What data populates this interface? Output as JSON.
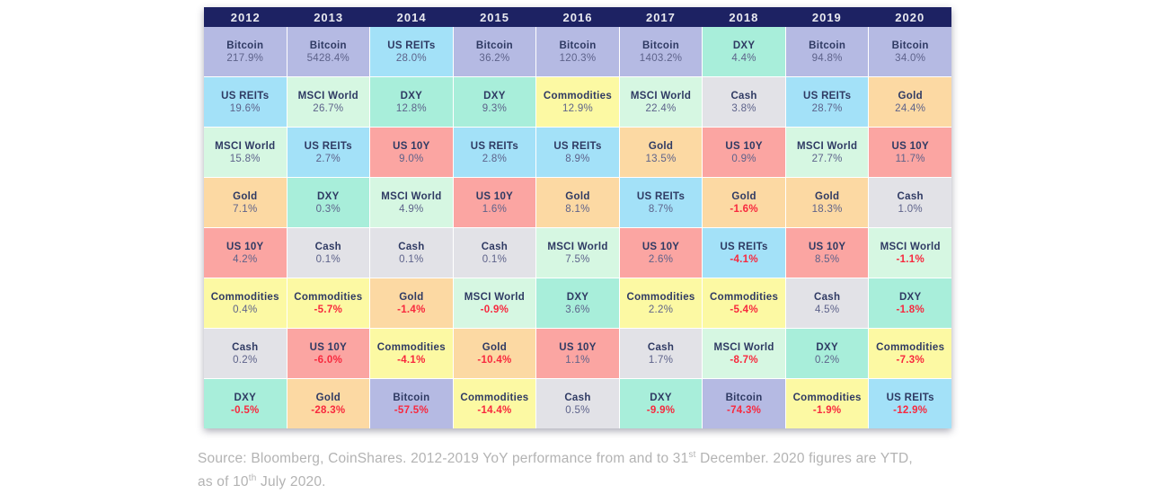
{
  "chart_data": {
    "type": "table",
    "title": "Yearly asset class performance ranking (periodic table of returns)",
    "columns": [
      "2012",
      "2013",
      "2014",
      "2015",
      "2016",
      "2017",
      "2018",
      "2019",
      "2020"
    ],
    "rows": [
      [
        {
          "asset": "Bitcoin",
          "value": "217.9%"
        },
        {
          "asset": "Bitcoin",
          "value": "5428.4%"
        },
        {
          "asset": "US REITs",
          "value": "28.0%"
        },
        {
          "asset": "Bitcoin",
          "value": "36.2%"
        },
        {
          "asset": "Bitcoin",
          "value": "120.3%"
        },
        {
          "asset": "Bitcoin",
          "value": "1403.2%"
        },
        {
          "asset": "DXY",
          "value": "4.4%"
        },
        {
          "asset": "Bitcoin",
          "value": "94.8%"
        },
        {
          "asset": "Bitcoin",
          "value": "34.0%"
        }
      ],
      [
        {
          "asset": "US REITs",
          "value": "19.6%"
        },
        {
          "asset": "MSCI World",
          "value": "26.7%"
        },
        {
          "asset": "DXY",
          "value": "12.8%"
        },
        {
          "asset": "DXY",
          "value": "9.3%"
        },
        {
          "asset": "Commodities",
          "value": "12.9%"
        },
        {
          "asset": "MSCI World",
          "value": "22.4%"
        },
        {
          "asset": "Cash",
          "value": "3.8%"
        },
        {
          "asset": "US REITs",
          "value": "28.7%"
        },
        {
          "asset": "Gold",
          "value": "24.4%"
        }
      ],
      [
        {
          "asset": "MSCI World",
          "value": "15.8%"
        },
        {
          "asset": "US REITs",
          "value": "2.7%"
        },
        {
          "asset": "US 10Y",
          "value": "9.0%"
        },
        {
          "asset": "US REITs",
          "value": "2.8%"
        },
        {
          "asset": "US REITs",
          "value": "8.9%"
        },
        {
          "asset": "Gold",
          "value": "13.5%"
        },
        {
          "asset": "US 10Y",
          "value": "0.9%"
        },
        {
          "asset": "MSCI World",
          "value": "27.7%"
        },
        {
          "asset": "US 10Y",
          "value": "11.7%"
        }
      ],
      [
        {
          "asset": "Gold",
          "value": "7.1%"
        },
        {
          "asset": "DXY",
          "value": "0.3%"
        },
        {
          "asset": "MSCI World",
          "value": "4.9%"
        },
        {
          "asset": "US 10Y",
          "value": "1.6%"
        },
        {
          "asset": "Gold",
          "value": "8.1%"
        },
        {
          "asset": "US REITs",
          "value": "8.7%"
        },
        {
          "asset": "Gold",
          "value": "-1.6%"
        },
        {
          "asset": "Gold",
          "value": "18.3%"
        },
        {
          "asset": "Cash",
          "value": "1.0%"
        }
      ],
      [
        {
          "asset": "US 10Y",
          "value": "4.2%"
        },
        {
          "asset": "Cash",
          "value": "0.1%"
        },
        {
          "asset": "Cash",
          "value": "0.1%"
        },
        {
          "asset": "Cash",
          "value": "0.1%"
        },
        {
          "asset": "MSCI World",
          "value": "7.5%"
        },
        {
          "asset": "US 10Y",
          "value": "2.6%"
        },
        {
          "asset": "US REITs",
          "value": "-4.1%"
        },
        {
          "asset": "US 10Y",
          "value": "8.5%"
        },
        {
          "asset": "MSCI World",
          "value": "-1.1%"
        }
      ],
      [
        {
          "asset": "Commodities",
          "value": "0.4%"
        },
        {
          "asset": "Commodities",
          "value": "-5.7%"
        },
        {
          "asset": "Gold",
          "value": "-1.4%"
        },
        {
          "asset": "MSCI World",
          "value": "-0.9%"
        },
        {
          "asset": "DXY",
          "value": "3.6%"
        },
        {
          "asset": "Commodities",
          "value": "2.2%"
        },
        {
          "asset": "Commodities",
          "value": "-5.4%"
        },
        {
          "asset": "Cash",
          "value": "4.5%"
        },
        {
          "asset": "DXY",
          "value": "-1.8%"
        }
      ],
      [
        {
          "asset": "Cash",
          "value": "0.2%"
        },
        {
          "asset": "US 10Y",
          "value": "-6.0%"
        },
        {
          "asset": "Commodities",
          "value": "-4.1%"
        },
        {
          "asset": "Gold",
          "value": "-10.4%"
        },
        {
          "asset": "US 10Y",
          "value": "1.1%"
        },
        {
          "asset": "Cash",
          "value": "1.7%"
        },
        {
          "asset": "MSCI World",
          "value": "-8.7%"
        },
        {
          "asset": "DXY",
          "value": "0.2%"
        },
        {
          "asset": "Commodities",
          "value": "-7.3%"
        }
      ],
      [
        {
          "asset": "DXY",
          "value": "-0.5%"
        },
        {
          "asset": "Gold",
          "value": "-28.3%"
        },
        {
          "asset": "Bitcoin",
          "value": "-57.5%"
        },
        {
          "asset": "Commodities",
          "value": "-14.4%"
        },
        {
          "asset": "Cash",
          "value": "0.5%"
        },
        {
          "asset": "DXY",
          "value": "-9.9%"
        },
        {
          "asset": "Bitcoin",
          "value": "-74.3%"
        },
        {
          "asset": "Commodities",
          "value": "-1.9%"
        },
        {
          "asset": "US REITs",
          "value": "-12.9%"
        }
      ]
    ],
    "legend_position": "none",
    "grid": "off"
  },
  "asset_colors": {
    "Bitcoin": "#b5bae3",
    "US REITs": "#a3e1f8",
    "MSCI World": "#d6f7e2",
    "DXY": "#a8eeda",
    "Commodities": "#fcf9a3",
    "Gold": "#fcd9a3",
    "US 10Y": "#fba5a2",
    "Cash": "#e2e2e7"
  },
  "colors": {
    "header_bg": "#1d2263",
    "header_text": "#e9eaf0",
    "label_text": "#2f3a63",
    "value_text": "#5d628a",
    "negative_text": "#f8283e",
    "grid_line": "#ffffff",
    "footer_text": "#b3b3b3"
  },
  "footer": {
    "line1_pre": "Source: Bloomberg, CoinShares. 2012-2019 YoY performance from and to 31",
    "line1_sup": "st",
    "line1_post": " December. 2020 figures are YTD,",
    "line2_pre": "as of 10",
    "line2_sup": "th",
    "line2_post": " July 2020."
  }
}
